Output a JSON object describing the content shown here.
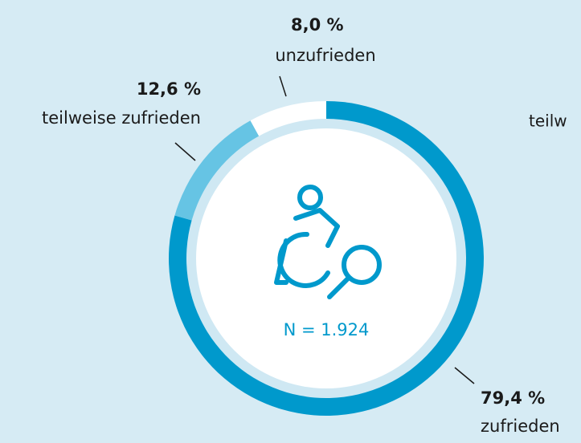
{
  "chart_data": {
    "type": "donut",
    "categories": [
      "zufrieden",
      "teilweise zufrieden",
      "unzufrieden"
    ],
    "values": [
      79.4,
      12.6,
      8.0
    ],
    "value_labels": [
      "79,4 %",
      "12,6 %",
      "8,0 %"
    ],
    "colors": [
      "#0099cc",
      "#66c4e4",
      "#ffffff"
    ],
    "center_label": "N = 1.924"
  },
  "clipped_text": "teilw"
}
